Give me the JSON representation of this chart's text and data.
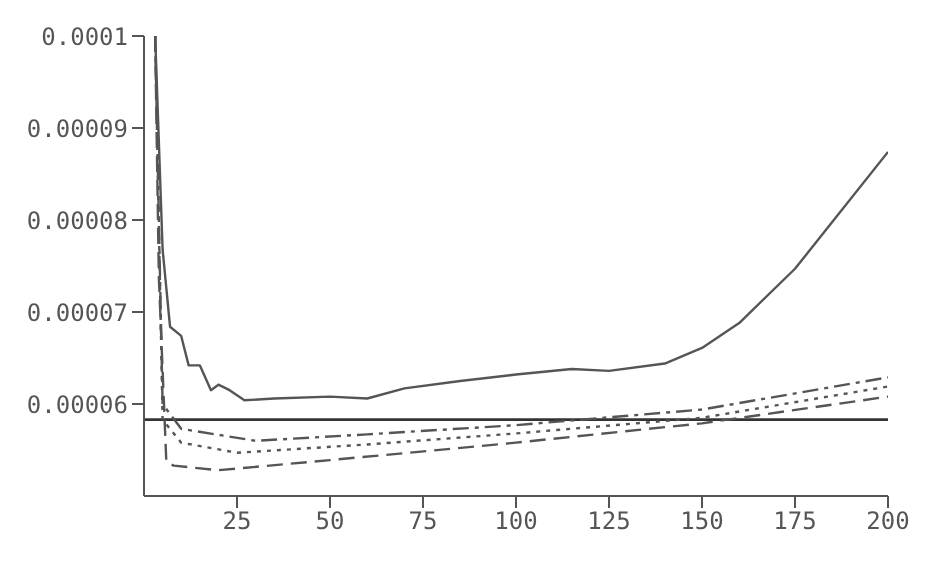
{
  "chart_data": {
    "type": "line",
    "xlim": [
      0,
      200
    ],
    "xticks": [
      25,
      50,
      75,
      100,
      125,
      150,
      175,
      200
    ],
    "ylim": [
      5e-05,
      0.0001
    ],
    "yticks": [
      {
        "value": 6e-05,
        "label": "0.00006"
      },
      {
        "value": 7e-05,
        "label": "0.00007"
      },
      {
        "value": 8e-05,
        "label": "0.00008"
      },
      {
        "value": 9e-05,
        "label": "0.00009"
      },
      {
        "value": 0.0001,
        "label": "0.0001"
      }
    ],
    "grid": false,
    "legend": false,
    "series": [
      {
        "color": "#555555",
        "line_style": "solid",
        "x": [
          3,
          5,
          7,
          10,
          12,
          15,
          18,
          20,
          23,
          27,
          35,
          50,
          60,
          70,
          85,
          100,
          115,
          125,
          140,
          150,
          160,
          175,
          200
        ],
        "values": [
          0.0001,
          7.68e-05,
          6.84e-05,
          6.74e-05,
          6.42e-05,
          6.42e-05,
          6.15e-05,
          6.21e-05,
          6.15e-05,
          6.04e-05,
          6.06e-05,
          6.08e-05,
          6.06e-05,
          6.17e-05,
          6.25e-05,
          6.32e-05,
          6.38e-05,
          6.36e-05,
          6.44e-05,
          6.61e-05,
          6.88e-05,
          7.47e-05,
          8.74e-05
        ]
      },
      {
        "color": "#555555",
        "line_style": "dashdot",
        "x": [
          3,
          5,
          10,
          30,
          60,
          100,
          150,
          200
        ],
        "values": [
          0.0001,
          6e-05,
          5.73e-05,
          5.6e-05,
          5.67e-05,
          5.77e-05,
          5.94e-05,
          6.29e-05
        ]
      },
      {
        "color": "#555555",
        "line_style": "dotted",
        "x": [
          3,
          5,
          10,
          25,
          60,
          100,
          150,
          200
        ],
        "values": [
          0.0001,
          5.83e-05,
          5.58e-05,
          5.47e-05,
          5.56e-05,
          5.68e-05,
          5.85e-05,
          6.19e-05
        ]
      },
      {
        "color": "#555555",
        "line_style": "dashed",
        "x": [
          3,
          4,
          6,
          8,
          20,
          50,
          100,
          150,
          200
        ],
        "values": [
          0.0001,
          7.37e-05,
          5.37e-05,
          5.33e-05,
          5.28e-05,
          5.39e-05,
          5.58e-05,
          5.79e-05,
          6.08e-05
        ]
      }
    ],
    "ref_lines": [
      {
        "axis": "y",
        "value": 5.83e-05,
        "color": "#333333",
        "line_style": "solid"
      }
    ]
  }
}
